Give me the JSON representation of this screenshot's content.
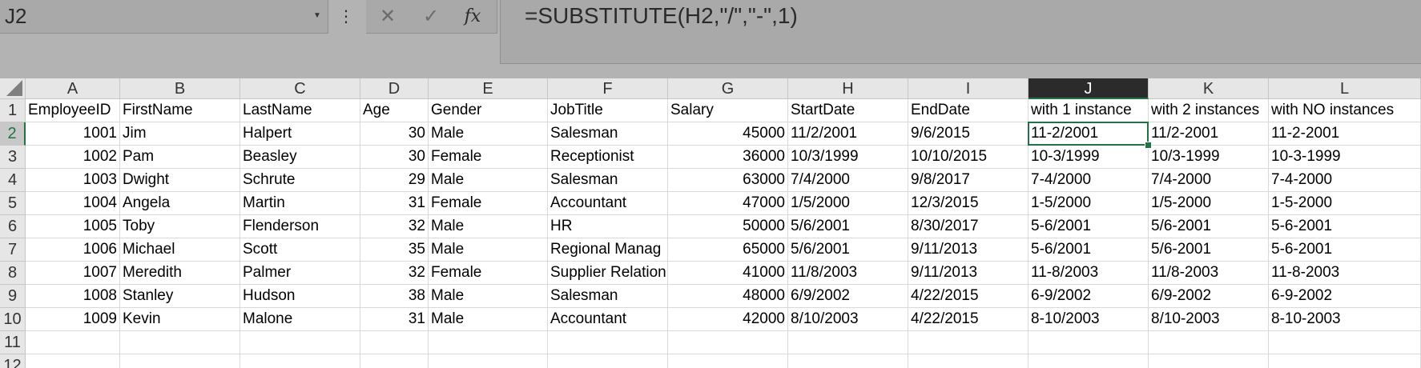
{
  "name_box": {
    "value": "J2"
  },
  "formula_bar": {
    "separator": "⋮",
    "cancel_icon": "✕",
    "enter_icon": "✓",
    "fx_label": "fx",
    "formula": "=SUBSTITUTE(H2,\"/\",\"-\",1)"
  },
  "sheet": {
    "selected_cell": "J2",
    "columns": [
      "A",
      "B",
      "C",
      "D",
      "E",
      "F",
      "G",
      "H",
      "I",
      "J",
      "K",
      "L"
    ],
    "row_numbers": [
      "1",
      "2",
      "3",
      "4",
      "5",
      "6",
      "7",
      "8",
      "9",
      "10",
      "11",
      "12"
    ],
    "rows": [
      [
        "EmployeeID",
        "FirstName",
        "LastName",
        "Age",
        "Gender",
        "JobTitle",
        "Salary",
        "StartDate",
        "EndDate",
        "with 1 instance",
        "with 2 instances",
        "with NO instances"
      ],
      [
        "1001",
        "Jim",
        "Halpert",
        "30",
        "Male",
        "Salesman",
        "45000",
        "11/2/2001",
        "9/6/2015",
        "11-2/2001",
        "11/2-2001",
        "11-2-2001"
      ],
      [
        "1002",
        "Pam",
        "Beasley",
        "30",
        "Female",
        "Receptionist",
        "36000",
        "10/3/1999",
        "10/10/2015",
        "10-3/1999",
        "10/3-1999",
        "10-3-1999"
      ],
      [
        "1003",
        "Dwight",
        "Schrute",
        "29",
        "Male",
        "Salesman",
        "63000",
        "7/4/2000",
        "9/8/2017",
        "7-4/2000",
        "7/4-2000",
        "7-4-2000"
      ],
      [
        "1004",
        "Angela",
        "Martin",
        "31",
        "Female",
        "Accountant",
        "47000",
        "1/5/2000",
        "12/3/2015",
        "1-5/2000",
        "1/5-2000",
        "1-5-2000"
      ],
      [
        "1005",
        "Toby",
        "Flenderson",
        "32",
        "Male",
        "HR",
        "50000",
        "5/6/2001",
        "8/30/2017",
        "5-6/2001",
        "5/6-2001",
        "5-6-2001"
      ],
      [
        "1006",
        "Michael",
        "Scott",
        "35",
        "Male",
        "Regional Manag",
        "65000",
        "5/6/2001",
        "9/11/2013",
        "5-6/2001",
        "5/6-2001",
        "5-6-2001"
      ],
      [
        "1007",
        "Meredith",
        "Palmer",
        "32",
        "Female",
        "Supplier Relation",
        "41000",
        "11/8/2003",
        "9/11/2013",
        "11-8/2003",
        "11/8-2003",
        "11-8-2003"
      ],
      [
        "1008",
        "Stanley",
        "Hudson",
        "38",
        "Male",
        "Salesman",
        "48000",
        "6/9/2002",
        "4/22/2015",
        "6-9/2002",
        "6/9-2002",
        "6-9-2002"
      ],
      [
        "1009",
        "Kevin",
        "Malone",
        "31",
        "Male",
        "Accountant",
        "42000",
        "8/10/2003",
        "4/22/2015",
        "8-10/2003",
        "8/10-2003",
        "8-10-2003"
      ],
      [
        "",
        "",
        "",
        "",
        "",
        "",
        "",
        "",
        "",
        "",
        "",
        ""
      ],
      [
        "",
        "",
        "",
        "",
        "",
        "",
        "",
        "",
        "",
        "",
        "",
        ""
      ]
    ]
  }
}
